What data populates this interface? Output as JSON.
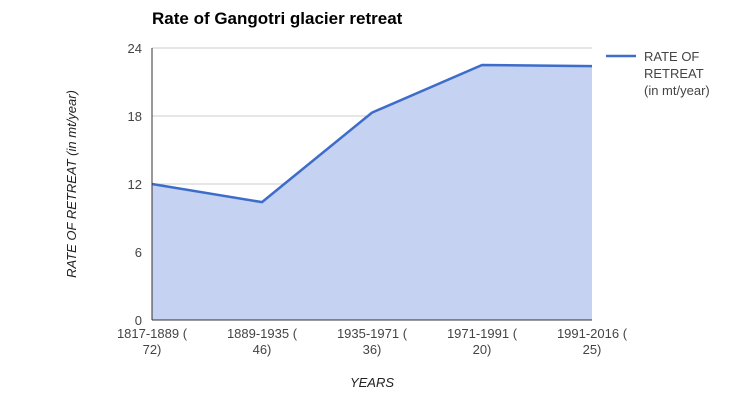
{
  "chart_data": {
    "type": "area",
    "title": "Rate of Gangotri glacier retreat",
    "xlabel": "YEARS",
    "ylabel": "RATE OF RETREAT  (in mt/year)",
    "categories": [
      [
        "1817-1889 (",
        "72)"
      ],
      [
        "1889-1935 (",
        "46)"
      ],
      [
        "1935-1971 (",
        "36)"
      ],
      [
        "1971-1991 (",
        "20)"
      ],
      [
        "1991-2016 (",
        "25)"
      ]
    ],
    "series": [
      {
        "name": [
          "RATE OF",
          "RETREAT",
          "(in mt/year)"
        ],
        "values": [
          12,
          10.4,
          18.3,
          22.5,
          22.4
        ]
      }
    ],
    "ylim": [
      0,
      24
    ],
    "yticks": [
      0,
      6,
      12,
      18,
      24
    ],
    "grid": true,
    "legend": "right",
    "colors": {
      "line": "#3d6cc9",
      "fill": "#c5d2f1",
      "grid": "#cccccc",
      "axis": "#333333"
    }
  }
}
